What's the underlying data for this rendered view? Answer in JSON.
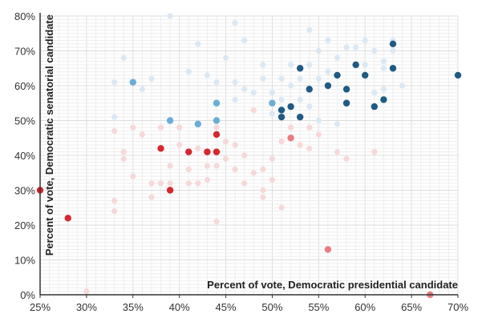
{
  "chart_data": {
    "type": "scatter",
    "title": "",
    "xlabel": "Percent of vote, Democratic presidential candidate",
    "ylabel": "Percent of vote, Democratic senatorial candidate",
    "xlim": [
      25,
      70
    ],
    "ylim": [
      0,
      80
    ],
    "x_ticks": [
      25,
      30,
      35,
      40,
      45,
      50,
      55,
      60,
      65,
      70
    ],
    "y_ticks": [
      0,
      10,
      20,
      30,
      40,
      50,
      60,
      70,
      80
    ],
    "x_tick_labels": [
      "25%",
      "30%",
      "35%",
      "40%",
      "45%",
      "50%",
      "55%",
      "60%",
      "65%",
      "70%"
    ],
    "y_tick_labels": [
      "0%",
      "10%",
      "20%",
      "30%",
      "40%",
      "50%",
      "60%",
      "70%",
      "80%"
    ],
    "grid": true,
    "colors": {
      "dark_blue": "#1f5a84",
      "light_blue": "#6aaed8",
      "faint_blue": "#dbe8f4",
      "dark_red": "#d7262d",
      "light_red": "#e97c80",
      "faint_red": "#f7d8d9"
    },
    "series": [
      {
        "color": "dark_blue",
        "points": [
          [
            53,
            65
          ],
          [
            54,
            59
          ],
          [
            56,
            60
          ],
          [
            57,
            63
          ],
          [
            58,
            59
          ],
          [
            58,
            55
          ],
          [
            59,
            66
          ],
          [
            60,
            63
          ],
          [
            61,
            54
          ],
          [
            62,
            56
          ],
          [
            63,
            72
          ],
          [
            63,
            65
          ],
          [
            70,
            63
          ],
          [
            51,
            53
          ],
          [
            52,
            54
          ],
          [
            51,
            51
          ],
          [
            53,
            51
          ]
        ]
      },
      {
        "color": "light_blue",
        "points": [
          [
            35,
            61
          ],
          [
            39,
            50
          ],
          [
            42,
            49
          ],
          [
            44,
            55
          ],
          [
            44,
            50
          ],
          [
            50,
            55
          ]
        ]
      },
      {
        "color": "dark_red",
        "points": [
          [
            25,
            30
          ],
          [
            28,
            22
          ],
          [
            38,
            42
          ],
          [
            39,
            30
          ],
          [
            41,
            41
          ],
          [
            43,
            41
          ],
          [
            44,
            46
          ],
          [
            44,
            41
          ]
        ]
      },
      {
        "color": "light_red",
        "points": [
          [
            52,
            45
          ],
          [
            56,
            13
          ],
          [
            67,
            0
          ]
        ]
      },
      {
        "color": "faint_blue",
        "points": [
          [
            33,
            61
          ],
          [
            34,
            68
          ],
          [
            37,
            62
          ],
          [
            39,
            80
          ],
          [
            41,
            64
          ],
          [
            42,
            72
          ],
          [
            43,
            63
          ],
          [
            44,
            61
          ],
          [
            45,
            68
          ],
          [
            46,
            61
          ],
          [
            46,
            78
          ],
          [
            47,
            59
          ],
          [
            47,
            73
          ],
          [
            48,
            58
          ],
          [
            49,
            62
          ],
          [
            49,
            66
          ],
          [
            50,
            58
          ],
          [
            51,
            62
          ],
          [
            51,
            56
          ],
          [
            52,
            60
          ],
          [
            52,
            66
          ],
          [
            53,
            62
          ],
          [
            53,
            56
          ],
          [
            54,
            76
          ],
          [
            54,
            66
          ],
          [
            54,
            54
          ],
          [
            55,
            70
          ],
          [
            55,
            62
          ],
          [
            55,
            50
          ],
          [
            56,
            73
          ],
          [
            56,
            64
          ],
          [
            57,
            68
          ],
          [
            57,
            49
          ],
          [
            58,
            71
          ],
          [
            59,
            71
          ],
          [
            60,
            66
          ],
          [
            60,
            73
          ],
          [
            61,
            70
          ],
          [
            62,
            67
          ],
          [
            62,
            65
          ],
          [
            63,
            70
          ],
          [
            63,
            73
          ],
          [
            64,
            60
          ],
          [
            33,
            51
          ],
          [
            36,
            59
          ],
          [
            46,
            56
          ],
          [
            50,
            52
          ],
          [
            61,
            58
          ],
          [
            62,
            59
          ]
        ]
      },
      {
        "color": "faint_red",
        "points": [
          [
            30,
            1
          ],
          [
            33,
            27
          ],
          [
            33,
            24
          ],
          [
            33,
            47
          ],
          [
            34,
            41
          ],
          [
            34,
            39
          ],
          [
            35,
            34
          ],
          [
            35,
            48
          ],
          [
            36,
            46
          ],
          [
            37,
            32
          ],
          [
            37,
            28
          ],
          [
            38,
            32
          ],
          [
            38,
            48
          ],
          [
            39,
            37
          ],
          [
            39,
            32
          ],
          [
            39,
            50
          ],
          [
            40,
            48
          ],
          [
            40,
            43
          ],
          [
            41,
            32
          ],
          [
            41,
            36
          ],
          [
            42,
            42
          ],
          [
            42,
            32
          ],
          [
            43,
            37
          ],
          [
            43,
            33
          ],
          [
            44,
            21
          ],
          [
            44,
            37
          ],
          [
            44,
            48
          ],
          [
            45,
            44
          ],
          [
            45,
            39
          ],
          [
            46,
            43
          ],
          [
            46,
            36
          ],
          [
            47,
            40
          ],
          [
            47,
            32
          ],
          [
            48,
            35
          ],
          [
            48,
            53
          ],
          [
            49,
            36
          ],
          [
            49,
            30
          ],
          [
            49,
            28
          ],
          [
            50,
            33
          ],
          [
            50,
            39
          ],
          [
            51,
            44
          ],
          [
            51,
            25
          ],
          [
            52,
            48
          ],
          [
            53,
            43
          ],
          [
            54,
            48
          ],
          [
            54,
            42
          ],
          [
            55,
            46
          ],
          [
            57,
            41
          ],
          [
            58,
            39
          ],
          [
            61,
            41
          ]
        ]
      }
    ]
  }
}
